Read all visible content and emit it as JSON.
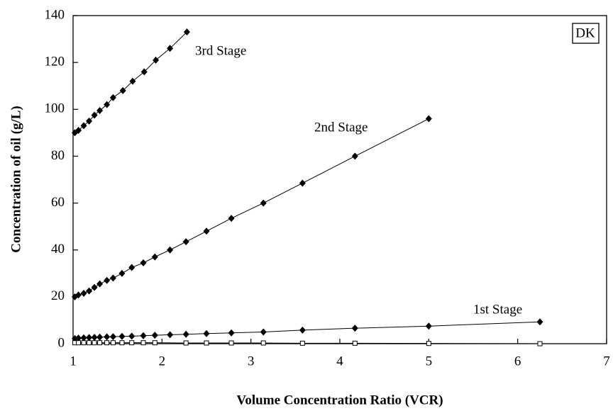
{
  "chart_data": {
    "type": "line",
    "x_label": "Volume Concentration Ratio (VCR)",
    "y_label": "Concentration of oil (g/L)",
    "annotation": "DK",
    "xlim": [
      1,
      7
    ],
    "xticks": [
      1,
      2,
      3,
      4,
      5,
      6,
      7
    ],
    "ylim": [
      0,
      140
    ],
    "yticks": [
      0,
      20,
      40,
      60,
      80,
      100,
      120,
      140
    ],
    "series": [
      {
        "name": "3rd Stage",
        "color": "#000000",
        "marker": "diamond",
        "x": [
          1.02,
          1.06,
          1.12,
          1.18,
          1.24,
          1.3,
          1.38,
          1.45,
          1.56,
          1.67,
          1.8,
          1.93,
          2.09,
          2.28
        ],
        "values": [
          90,
          91,
          93,
          95,
          97.5,
          99.5,
          102,
          105,
          108,
          112,
          116,
          121,
          126,
          133
        ]
      },
      {
        "name": "2nd Stage",
        "color": "#000000",
        "marker": "diamond",
        "x": [
          1.02,
          1.06,
          1.12,
          1.18,
          1.24,
          1.3,
          1.38,
          1.45,
          1.55,
          1.66,
          1.79,
          1.92,
          2.09,
          2.27,
          2.5,
          2.78,
          3.14,
          3.58,
          4.17,
          5.0
        ],
        "values": [
          20,
          20.8,
          21.5,
          22.5,
          24,
          25.5,
          27,
          28,
          30,
          32.5,
          34.5,
          37,
          40,
          43.5,
          48,
          53.5,
          60,
          68.5,
          80,
          96
        ]
      },
      {
        "name": "1st Stage",
        "color": "#000000",
        "marker": "diamond",
        "x": [
          1.02,
          1.06,
          1.12,
          1.18,
          1.24,
          1.3,
          1.38,
          1.45,
          1.55,
          1.66,
          1.79,
          1.92,
          2.09,
          2.27,
          2.5,
          2.78,
          3.14,
          3.58,
          4.17,
          5.0,
          6.25
        ],
        "values": [
          2.2,
          2.4,
          2.5,
          2.6,
          2.7,
          2.8,
          2.9,
          3.0,
          3.1,
          3.2,
          3.4,
          3.6,
          3.8,
          4.0,
          4.3,
          4.6,
          5.0,
          5.8,
          6.6,
          7.5,
          9.3
        ]
      },
      {
        "color": "#000000",
        "marker": "square",
        "x": [
          1.02,
          1.06,
          1.12,
          1.18,
          1.24,
          1.3,
          1.38,
          1.45,
          1.55,
          1.66,
          1.79,
          1.92,
          2.27,
          2.5,
          2.78,
          3.14,
          3.58,
          4.17,
          5.0,
          6.25
        ],
        "values": [
          0.4,
          0.4,
          0.4,
          0.4,
          0.4,
          0.4,
          0.4,
          0.4,
          0.4,
          0.4,
          0.4,
          0.4,
          0.3,
          0.3,
          0.3,
          0.3,
          0.2,
          0.2,
          0.1,
          0
        ]
      }
    ]
  }
}
